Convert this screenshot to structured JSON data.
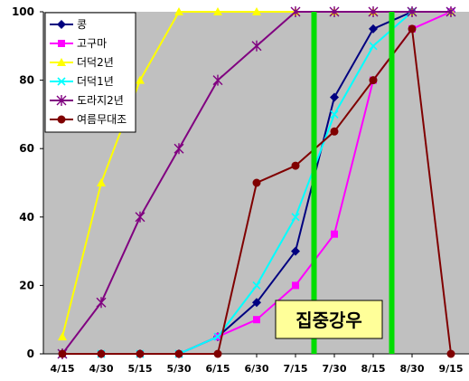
{
  "chart_data": {
    "type": "line",
    "categories": [
      "4/15",
      "4/30",
      "5/15",
      "5/30",
      "6/15",
      "6/30",
      "7/15",
      "7/30",
      "8/15",
      "8/30",
      "9/15"
    ],
    "ylim": [
      0,
      100
    ],
    "yticks": [
      0,
      20,
      40,
      60,
      80,
      100
    ],
    "grid": false,
    "plot_background": "#c0c0c0",
    "legend_position": "top-left",
    "series": [
      {
        "name": "콩",
        "color": "#000080",
        "marker": "diamond",
        "values": [
          0,
          0,
          0,
          0,
          5,
          15,
          30,
          75,
          95,
          100,
          100
        ]
      },
      {
        "name": "고구마",
        "color": "#ff00ff",
        "marker": "square",
        "values": [
          0,
          0,
          0,
          0,
          5,
          10,
          20,
          35,
          80,
          95,
          100
        ]
      },
      {
        "name": "더덕2년",
        "color": "#ffff00",
        "marker": "triangle",
        "values": [
          5,
          50,
          80,
          100,
          100,
          100,
          100,
          100,
          100,
          100,
          100
        ]
      },
      {
        "name": "더덕1년",
        "color": "#00ffff",
        "marker": "x",
        "values": [
          0,
          0,
          0,
          0,
          5,
          20,
          40,
          70,
          90,
          100,
          100
        ]
      },
      {
        "name": "도라지2년",
        "color": "#800080",
        "marker": "asterisk",
        "values": [
          0,
          15,
          40,
          60,
          80,
          90,
          100,
          100,
          100,
          100,
          100
        ]
      },
      {
        "name": "여름무대조",
        "color": "#800000",
        "marker": "circle",
        "values": [
          0,
          0,
          0,
          0,
          0,
          50,
          55,
          65,
          80,
          95,
          0
        ]
      }
    ],
    "highlight_lines": {
      "color": "#00dd00",
      "x_positions": [
        6.5,
        8.5
      ]
    },
    "annotation": {
      "text": "집중강우",
      "background": "#ffff99",
      "border": "#000000"
    }
  }
}
